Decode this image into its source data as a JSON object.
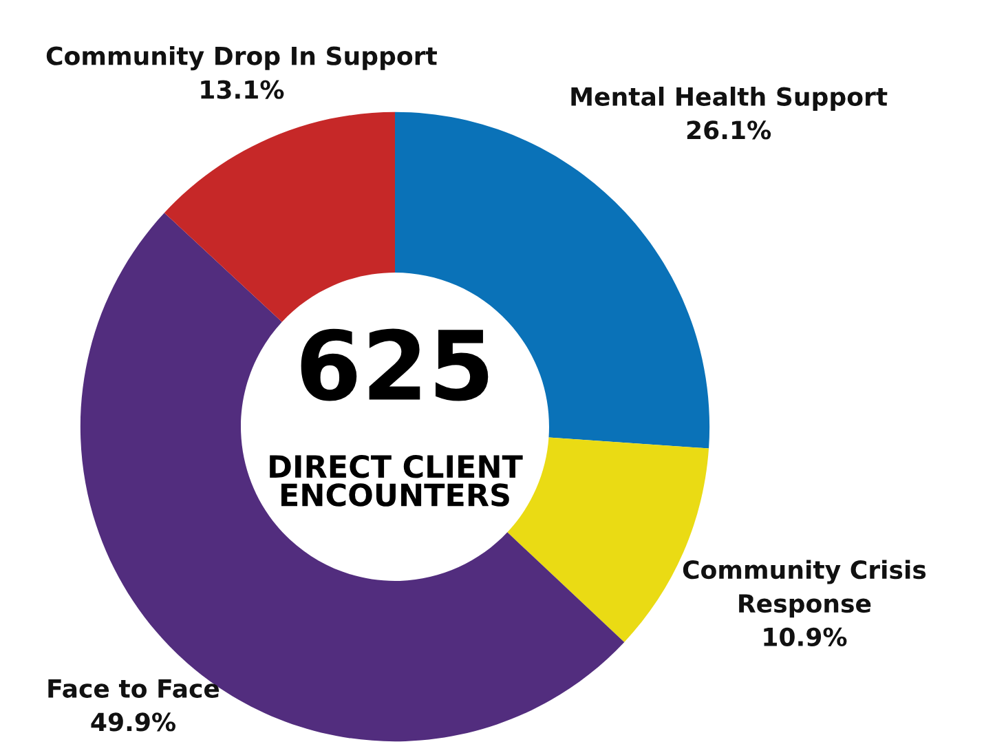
{
  "chart_data": {
    "type": "donut",
    "categories": [
      "Mental Health Support",
      "Community Crisis\nResponse",
      "Face to Face",
      "Community Drop In Support"
    ],
    "values": [
      26.1,
      10.9,
      49.9,
      13.1
    ],
    "colors": [
      "#0a72b8",
      "#eadb14",
      "#522d7e",
      "#c62828"
    ],
    "value_labels": [
      "26.1%",
      "10.9%",
      "49.9%",
      "13.1%"
    ],
    "annotations": [
      "625",
      "DIRECT CLIENT\nENCOUNTERS"
    ]
  }
}
